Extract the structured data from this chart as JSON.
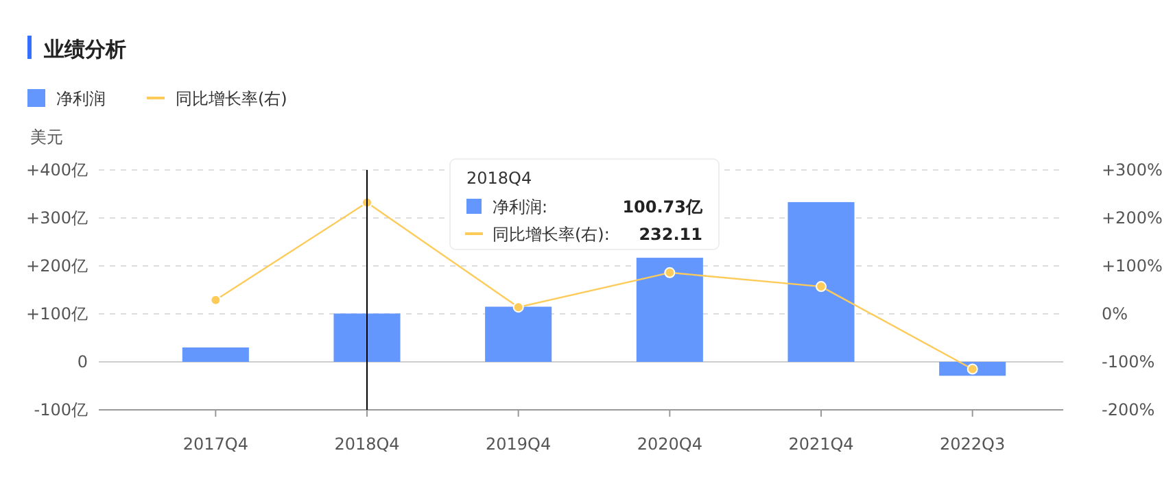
{
  "chart_data": {
    "type": "bar",
    "title": "业绩分析",
    "ylabel": "美元",
    "categories": [
      "2017Q4",
      "2018Q4",
      "2019Q4",
      "2020Q4",
      "2021Q4",
      "2022Q3"
    ],
    "series": [
      {
        "name": "净利润",
        "color": "#6497fd",
        "values": [
          30,
          100.73,
          115,
          217,
          333,
          -29
        ]
      },
      {
        "name": "同比增长率(右)",
        "type": "line",
        "axis": "y2",
        "color": "#fdcb5a",
        "values": [
          29,
          232.11,
          14,
          86,
          57,
          -115
        ]
      }
    ],
    "ylim": [
      -100,
      400
    ],
    "yticks": [
      {
        "value": -100,
        "label": "-100亿"
      },
      0,
      {
        "value": 100,
        "label": "+100亿"
      },
      {
        "value": 200,
        "label": "+200亿"
      },
      {
        "value": 300,
        "label": "+300亿"
      },
      {
        "value": 400,
        "label": "+400亿"
      }
    ],
    "y2lim": [
      -200,
      300
    ],
    "y2ticks": [
      {
        "value": -200,
        "label": "-200%"
      },
      {
        "value": -100,
        "label": "-100%"
      },
      {
        "value": 0,
        "label": "0%"
      },
      {
        "value": 100,
        "label": "+100%"
      },
      {
        "value": 200,
        "label": "+200%"
      },
      {
        "value": 300,
        "label": "+300%"
      }
    ],
    "grid": "y",
    "legend": "top left",
    "marker": "circle",
    "ref_lines": [
      {
        "axis": "x",
        "value": "2018Q4",
        "color": "#000000"
      }
    ],
    "annotations": [
      "2018Q4",
      "净利润:",
      "100.73亿",
      "同比增长率(右):",
      "232.11"
    ]
  }
}
